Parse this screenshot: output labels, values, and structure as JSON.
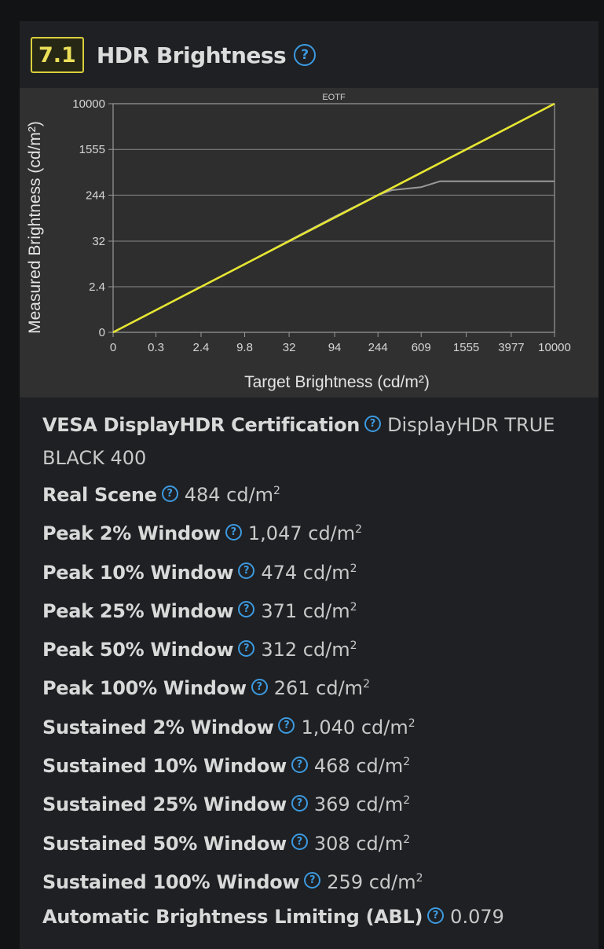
{
  "section": {
    "score": "7.1",
    "title": "HDR Brightness",
    "help_icon": "question-circle-icon"
  },
  "chart_data": {
    "type": "line",
    "title": "EOTF",
    "xlabel": "Target Brightness (cd/m²)",
    "ylabel": "Measured Brightness (cd/m²)",
    "x_tick_labels": [
      "0",
      "0.3",
      "2.4",
      "9.8",
      "32",
      "94",
      "244",
      "609",
      "1555",
      "3977",
      "10000"
    ],
    "y_tick_labels": [
      "10000",
      "1555",
      "244",
      "32",
      "2.4",
      "0"
    ],
    "scale": "pq",
    "xlim": [
      0,
      10000
    ],
    "ylim": [
      0,
      10000
    ],
    "grid": true,
    "series": [
      {
        "color": "#e6e633",
        "x": [
          0,
          10000
        ],
        "y": [
          0,
          10000
        ]
      },
      {
        "color": "#9a9a9a",
        "x": [
          0,
          0.3,
          2.4,
          9.8,
          32,
          94,
          244,
          330,
          609,
          900,
          1555,
          3977,
          10000
        ],
        "y": [
          0,
          0.3,
          2.4,
          9.8,
          33,
          98,
          246,
          300,
          340,
          430,
          430,
          430,
          430
        ]
      }
    ]
  },
  "specs": [
    {
      "label": "VESA DisplayHDR Certification",
      "value": "DisplayHDR TRUE BLACK 400",
      "unit": ""
    },
    {
      "label": "Real Scene",
      "value": "484 cd/m",
      "unit": "2"
    },
    {
      "label": "Peak 2% Window",
      "value": "1,047 cd/m",
      "unit": "2"
    },
    {
      "label": "Peak 10% Window",
      "value": "474 cd/m",
      "unit": "2"
    },
    {
      "label": "Peak 25% Window",
      "value": "371 cd/m",
      "unit": "2"
    },
    {
      "label": "Peak 50% Window",
      "value": "312 cd/m",
      "unit": "2"
    },
    {
      "label": "Peak 100% Window",
      "value": "261 cd/m",
      "unit": "2"
    },
    {
      "label": "Sustained 2% Window",
      "value": "1,040 cd/m",
      "unit": "2"
    },
    {
      "label": "Sustained 10% Window",
      "value": "468 cd/m",
      "unit": "2"
    },
    {
      "label": "Sustained 25% Window",
      "value": "369 cd/m",
      "unit": "2"
    },
    {
      "label": "Sustained 50% Window",
      "value": "308 cd/m",
      "unit": "2"
    },
    {
      "label": "Sustained 100% Window",
      "value": "259 cd/m",
      "unit": "2"
    },
    {
      "label": "Automatic Brightness Limiting (ABL)",
      "value": "0.079",
      "unit": ""
    }
  ]
}
